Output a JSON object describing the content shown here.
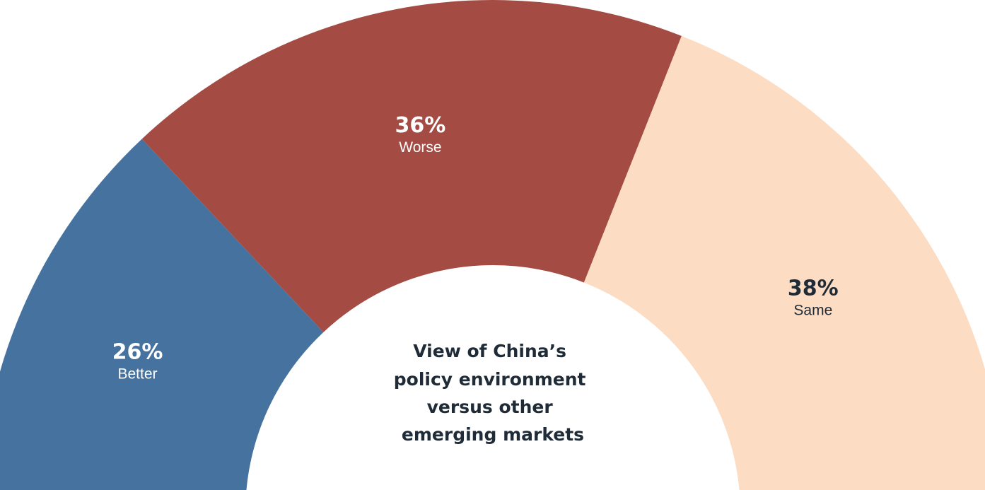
{
  "chart_data": {
    "type": "pie",
    "subtype": "semi-donut",
    "title_lines": [
      "View of China’s",
      "policy environment",
      "versus other",
      "emerging markets"
    ],
    "slices": [
      {
        "label": "Better",
        "value": 26,
        "value_label": "26%",
        "color": "#45729f",
        "text_color": "#ffffff"
      },
      {
        "label": "Worse",
        "value": 36,
        "value_label": "36%",
        "color": "#a44b44",
        "text_color": "#ffffff"
      },
      {
        "label": "Same",
        "value": 38,
        "value_label": "38%",
        "color": "#fcdcc2",
        "text_color": "#1f2b36"
      }
    ]
  }
}
